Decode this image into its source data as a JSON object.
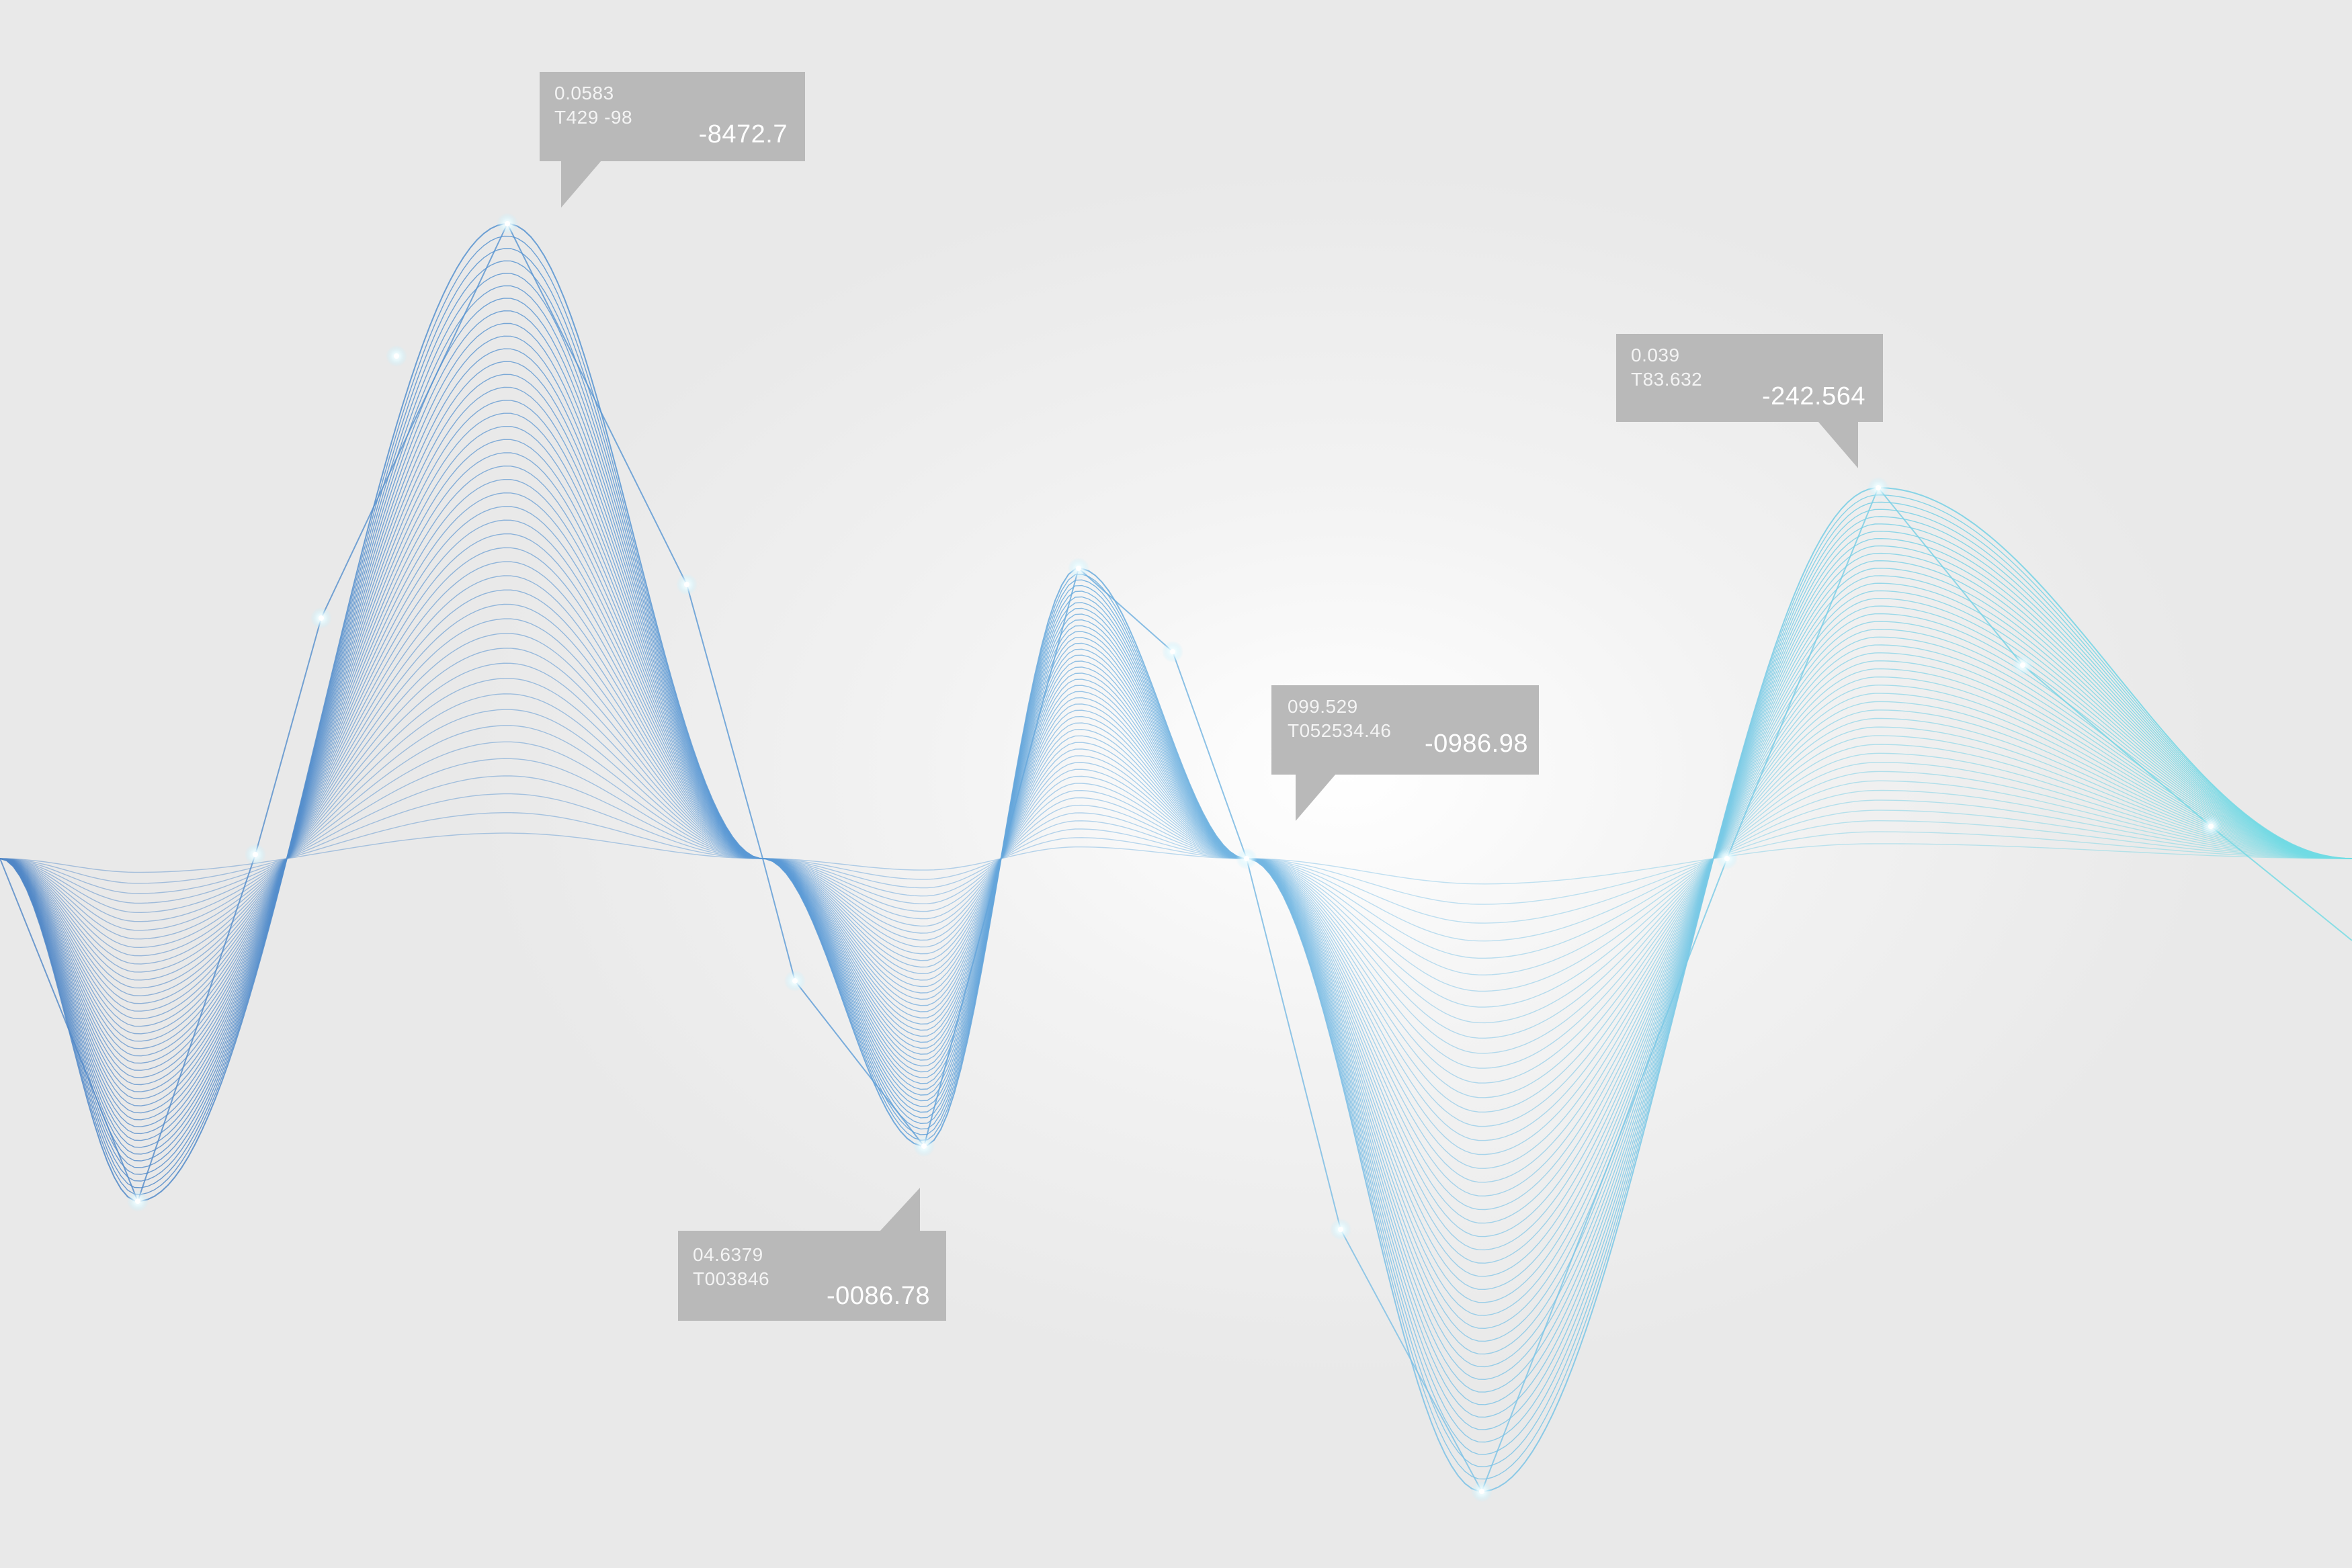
{
  "callouts": [
    {
      "code1": "0.0583",
      "code2": "T429 -98",
      "value": "-8472.7"
    },
    {
      "code1": "0.039",
      "code2": "T83.632",
      "value": "-242.564"
    },
    {
      "code1": "099.529",
      "code2": "T052534.46",
      "value": "-0986.98"
    },
    {
      "code1": "04.6379",
      "code2": "T003846",
      "value": "-0086.78"
    }
  ],
  "colors": {
    "wave_start": "#4f86c6",
    "wave_end": "#6fdce4",
    "callout_bg": "#b9b9b9",
    "node_glow": "#ffffff"
  }
}
